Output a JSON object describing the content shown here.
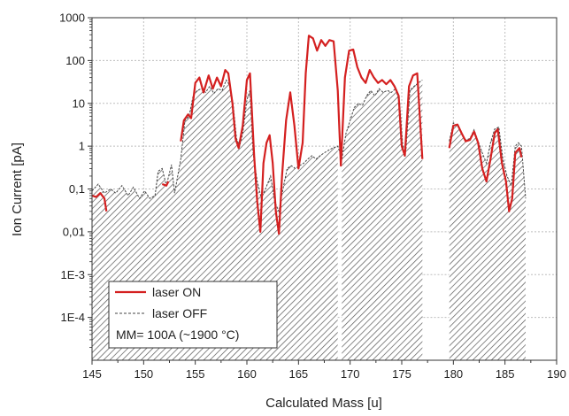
{
  "chart_data": {
    "type": "line",
    "xlabel": "Calculated Mass [u]",
    "ylabel": "Ion Current [pA]",
    "xlim": [
      145,
      190
    ],
    "ylim": [
      1e-05,
      1000
    ],
    "yscale": "log",
    "grid": true,
    "x_ticks": [
      "145",
      "150",
      "155",
      "160",
      "165",
      "170",
      "175",
      "180",
      "185",
      "190"
    ],
    "y_ticks": [
      "1E-4",
      "1E-3",
      "0,01",
      "0,1",
      "1",
      "10",
      "100",
      "1000"
    ],
    "legend": {
      "placement": "bottom-left",
      "entries": [
        "laser ON",
        "laser OFF"
      ],
      "note": "MM= 100A (~1900 °C)"
    },
    "colors": {
      "laser_on": "#d42020",
      "laser_off": "#444444",
      "hatch": "#555555"
    },
    "series": [
      {
        "name": "laser ON",
        "segments": [
          [
            [
              145.0,
              0.07
            ],
            [
              145.4,
              0.065
            ],
            [
              145.8,
              0.08
            ],
            [
              146.2,
              0.06
            ],
            [
              146.4,
              0.03
            ]
          ],
          [
            [
              151.8,
              0.13
            ],
            [
              152.2,
              0.12
            ],
            [
              152.4,
              0.15
            ]
          ],
          [
            [
              153.6,
              1.3
            ],
            [
              153.9,
              4
            ],
            [
              154.3,
              5.5
            ],
            [
              154.6,
              4.5
            ],
            [
              155.0,
              30
            ],
            [
              155.4,
              40
            ],
            [
              155.8,
              18
            ],
            [
              156.3,
              45
            ],
            [
              156.7,
              22
            ],
            [
              157.1,
              40
            ],
            [
              157.5,
              25
            ],
            [
              157.9,
              60
            ],
            [
              158.2,
              50
            ],
            [
              158.6,
              10
            ],
            [
              158.9,
              1.5
            ],
            [
              159.2,
              0.9
            ],
            [
              159.6,
              3
            ],
            [
              160.0,
              35
            ],
            [
              160.3,
              50
            ],
            [
              160.7,
              0.6
            ],
            [
              161.0,
              0.05
            ],
            [
              161.3,
              0.01
            ],
            [
              161.6,
              0.4
            ],
            [
              161.9,
              1.2
            ],
            [
              162.2,
              1.8
            ],
            [
              162.5,
              0.4
            ],
            [
              162.8,
              0.03
            ],
            [
              163.1,
              0.009
            ],
            [
              163.4,
              0.2
            ],
            [
              163.8,
              4
            ],
            [
              164.2,
              18
            ],
            [
              164.6,
              3
            ],
            [
              165.0,
              0.3
            ],
            [
              165.4,
              1.2
            ],
            [
              165.7,
              50
            ],
            [
              166.0,
              380
            ],
            [
              166.4,
              330
            ],
            [
              166.8,
              170
            ],
            [
              167.2,
              300
            ],
            [
              167.6,
              220
            ],
            [
              168.0,
              300
            ],
            [
              168.4,
              280
            ],
            [
              168.8,
              20
            ],
            [
              169.1,
              0.35
            ],
            [
              169.5,
              40
            ],
            [
              169.9,
              170
            ],
            [
              170.3,
              180
            ],
            [
              170.7,
              70
            ],
            [
              171.1,
              40
            ],
            [
              171.5,
              30
            ],
            [
              171.9,
              60
            ],
            [
              172.3,
              40
            ],
            [
              172.7,
              30
            ],
            [
              173.1,
              35
            ],
            [
              173.5,
              28
            ],
            [
              173.9,
              35
            ],
            [
              174.3,
              25
            ],
            [
              174.7,
              15
            ],
            [
              175.0,
              1
            ],
            [
              175.3,
              0.6
            ],
            [
              175.7,
              25
            ],
            [
              176.1,
              45
            ],
            [
              176.5,
              50
            ],
            [
              177.0,
              0.5
            ]
          ],
          [
            [
              179.6,
              0.9
            ],
            [
              180.0,
              3
            ],
            [
              180.4,
              3.2
            ],
            [
              180.8,
              2
            ],
            [
              181.2,
              1.3
            ],
            [
              181.6,
              1.4
            ],
            [
              182.0,
              2.2
            ],
            [
              182.4,
              1.2
            ],
            [
              182.8,
              0.3
            ],
            [
              183.2,
              0.15
            ],
            [
              183.6,
              0.5
            ],
            [
              184.0,
              2
            ],
            [
              184.3,
              2.5
            ],
            [
              184.7,
              0.4
            ],
            [
              185.1,
              0.15
            ],
            [
              185.4,
              0.03
            ],
            [
              185.7,
              0.06
            ],
            [
              186.0,
              0.7
            ],
            [
              186.4,
              0.9
            ],
            [
              186.6,
              0.55
            ]
          ]
        ]
      },
      {
        "name": "laser OFF",
        "segments": [
          [
            [
              145.0,
              0.09
            ],
            [
              145.6,
              0.13
            ],
            [
              146.2,
              0.08
            ],
            [
              146.8,
              0.1
            ],
            [
              147.3,
              0.08
            ],
            [
              147.9,
              0.12
            ],
            [
              148.5,
              0.07
            ],
            [
              149.0,
              0.11
            ],
            [
              149.6,
              0.06
            ],
            [
              150.1,
              0.09
            ],
            [
              150.6,
              0.06
            ],
            [
              151.1,
              0.07
            ],
            [
              151.4,
              0.26
            ],
            [
              151.8,
              0.3
            ],
            [
              152.2,
              0.12
            ],
            [
              152.7,
              0.37
            ],
            [
              153.0,
              0.08
            ],
            [
              153.6,
              0.5
            ],
            [
              154.0,
              4
            ],
            [
              154.4,
              5
            ],
            [
              154.8,
              15
            ],
            [
              155.2,
              20
            ],
            [
              155.6,
              22
            ],
            [
              156.0,
              18
            ],
            [
              156.4,
              25
            ],
            [
              156.8,
              17
            ],
            [
              157.2,
              22
            ],
            [
              157.6,
              20
            ],
            [
              158.0,
              35
            ],
            [
              158.4,
              25
            ],
            [
              158.7,
              8
            ],
            [
              159.0,
              1.5
            ],
            [
              159.3,
              1.0
            ],
            [
              159.6,
              2
            ],
            [
              160.0,
              12
            ],
            [
              160.3,
              20
            ],
            [
              160.6,
              0.7
            ],
            [
              161.0,
              0.15
            ],
            [
              161.4,
              0.06
            ],
            [
              161.8,
              0.1
            ],
            [
              162.3,
              0.2
            ],
            [
              162.7,
              0.05
            ],
            [
              163.1,
              0.03
            ],
            [
              163.5,
              0.1
            ],
            [
              163.9,
              0.3
            ],
            [
              164.3,
              0.35
            ],
            [
              164.7,
              0.3
            ],
            [
              165.1,
              0.35
            ],
            [
              165.5,
              0.4
            ],
            [
              165.9,
              0.5
            ],
            [
              166.3,
              0.6
            ],
            [
              166.7,
              0.5
            ],
            [
              167.1,
              0.6
            ],
            [
              167.5,
              0.7
            ],
            [
              167.9,
              0.8
            ],
            [
              168.3,
              0.9
            ],
            [
              168.8,
              1.0
            ],
            [
              169.2,
              0.5
            ],
            [
              169.6,
              2
            ],
            [
              170.0,
              4
            ],
            [
              170.4,
              8
            ],
            [
              170.8,
              10
            ],
            [
              171.2,
              9
            ],
            [
              171.6,
              15
            ],
            [
              172.0,
              20
            ],
            [
              172.4,
              15
            ],
            [
              172.8,
              22
            ],
            [
              173.2,
              18
            ],
            [
              173.6,
              20
            ],
            [
              174.0,
              18
            ],
            [
              174.4,
              22
            ],
            [
              174.8,
              10
            ],
            [
              175.1,
              1.0
            ],
            [
              175.4,
              0.8
            ],
            [
              175.8,
              20
            ],
            [
              176.2,
              25
            ],
            [
              176.6,
              30
            ],
            [
              177.0,
              35
            ]
          ],
          [
            [
              179.6,
              1.3
            ],
            [
              180.0,
              3.5
            ],
            [
              180.4,
              3
            ],
            [
              180.8,
              2
            ],
            [
              181.2,
              1.4
            ],
            [
              181.6,
              1.5
            ],
            [
              182.0,
              2.4
            ],
            [
              182.4,
              1.3
            ],
            [
              182.8,
              0.7
            ],
            [
              183.2,
              0.4
            ],
            [
              183.6,
              1.2
            ],
            [
              184.0,
              2.5
            ],
            [
              184.4,
              2.8
            ],
            [
              184.8,
              0.5
            ],
            [
              185.2,
              0.2
            ],
            [
              185.6,
              0.12
            ],
            [
              186.0,
              1.0
            ],
            [
              186.3,
              1.2
            ],
            [
              186.6,
              1.0
            ],
            [
              187.0,
              0.06
            ]
          ]
        ]
      }
    ],
    "hatched_regions": [
      {
        "x_start": 145,
        "x_end": 168.8
      },
      {
        "x_start": 169.2,
        "x_end": 177.1
      },
      {
        "x_start": 179.6,
        "x_end": 187.1
      }
    ]
  }
}
